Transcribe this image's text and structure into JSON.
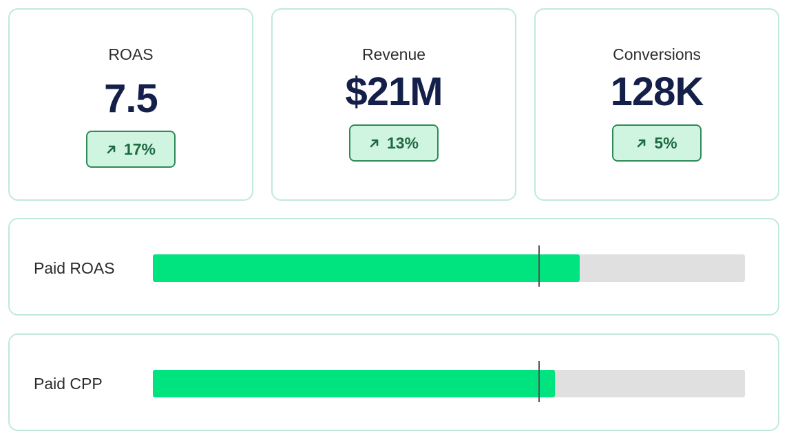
{
  "kpis": [
    {
      "label": "ROAS",
      "value": "7.5",
      "change": "17%",
      "direction": "up"
    },
    {
      "label": "Revenue",
      "value": "$21M",
      "change": "13%",
      "direction": "up"
    },
    {
      "label": "Conversions",
      "value": "128K",
      "change": "5%",
      "direction": "up"
    }
  ],
  "bars": [
    {
      "label": "Paid ROAS",
      "fill_fraction": 0.721,
      "target_fraction": 0.651
    },
    {
      "label": "Paid CPP",
      "fill_fraction": 0.679,
      "target_fraction": 0.651
    }
  ],
  "colors": {
    "card_border": "#bfe9dc",
    "value_text": "#14204a",
    "badge_bg": "#cff5e0",
    "badge_border": "#2e8a56",
    "badge_text": "#1e6a42",
    "bar_fill": "#00e47f",
    "bar_track": "#e0e0e0",
    "target_marker": "#555555"
  },
  "icons": {
    "change_up": "arrow-up-right-icon"
  }
}
